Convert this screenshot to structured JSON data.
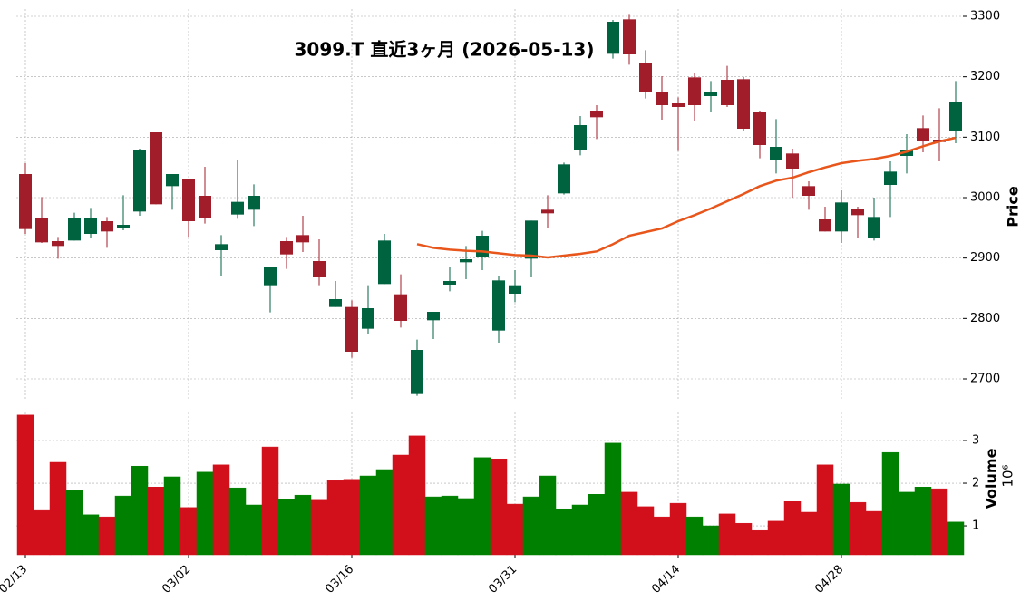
{
  "chart_data": {
    "type": "candlestick",
    "title": "3099.T  直近3ヶ月  (2026-05-13)",
    "ylabel": "Price",
    "volume_label": "Volume",
    "volume_exponent": "10⁶",
    "categories": [
      "02/13",
      null,
      null,
      null,
      null,
      null,
      null,
      null,
      null,
      null,
      "03/02",
      null,
      null,
      null,
      null,
      null,
      null,
      null,
      null,
      null,
      "03/16",
      null,
      null,
      null,
      null,
      null,
      null,
      null,
      null,
      null,
      "03/31",
      null,
      null,
      null,
      null,
      null,
      null,
      null,
      null,
      null,
      "04/14",
      null,
      null,
      null,
      null,
      null,
      null,
      null,
      null,
      null,
      "04/28",
      null,
      null,
      null,
      null,
      null,
      null,
      null
    ],
    "open": [
      3039,
      2967,
      2928,
      2929,
      2940,
      2961,
      2949,
      2977,
      3108,
      3019,
      3030,
      3003,
      2913,
      2972,
      2980,
      2855,
      2928,
      2938,
      2895,
      2819,
      2819,
      2783,
      2857,
      2840,
      2675,
      2797,
      2856,
      2893,
      2901,
      2780,
      2841,
      2899,
      2980,
      3007,
      3079,
      3144,
      3238,
      3295,
      3223,
      3175,
      3156,
      3199,
      3168,
      3195,
      3196,
      3141,
      3062,
      3073,
      3019,
      2964,
      2944,
      2982,
      2934,
      3021,
      3069,
      3115,
      3096,
      3111
    ],
    "high": [
      3057,
      3001,
      2935,
      2975,
      2983,
      2968,
      3004,
      3081,
      3108,
      3039,
      3030,
      3051,
      2938,
      3063,
      3022,
      2885,
      2935,
      2970,
      2931,
      2862,
      2830,
      2855,
      2940,
      2873,
      2765,
      2811,
      2885,
      2920,
      2945,
      2870,
      2880,
      2962,
      3004,
      3058,
      3135,
      3153,
      3294,
      3304,
      3244,
      3201,
      3166,
      3207,
      3193,
      3218,
      3200,
      3144,
      3130,
      3081,
      3027,
      2985,
      3012,
      2985,
      3000,
      3060,
      3105,
      3136,
      3148,
      3193
    ],
    "low": [
      2940,
      2925,
      2899,
      2929,
      2934,
      2917,
      2946,
      2970,
      2989,
      2980,
      2935,
      2957,
      2870,
      2965,
      2953,
      2810,
      2882,
      2910,
      2855,
      2819,
      2735,
      2775,
      2857,
      2785,
      2672,
      2766,
      2845,
      2865,
      2880,
      2760,
      2827,
      2868,
      2949,
      3005,
      3070,
      3097,
      3230,
      3220,
      3164,
      3129,
      3077,
      3126,
      3142,
      3150,
      3110,
      3065,
      3040,
      3000,
      2980,
      2944,
      2925,
      2934,
      2929,
      2968,
      3040,
      3075,
      3060,
      3090
    ],
    "close": [
      2948,
      2926,
      2920,
      2966,
      2966,
      2944,
      2955,
      3078,
      2989,
      3039,
      2961,
      2966,
      2923,
      2993,
      3003,
      2885,
      2906,
      2926,
      2868,
      2832,
      2745,
      2817,
      2929,
      2796,
      2748,
      2811,
      2862,
      2898,
      2937,
      2863,
      2855,
      2962,
      2974,
      3055,
      3120,
      3133,
      3291,
      3237,
      3174,
      3153,
      3150,
      3153,
      3175,
      3153,
      3114,
      3087,
      3084,
      3048,
      3003,
      2944,
      2992,
      2971,
      2968,
      3043,
      3078,
      3094,
      3092,
      3159
    ],
    "volume": [
      3.6,
      1.36,
      2.49,
      1.83,
      1.26,
      1.21,
      1.7,
      2.4,
      1.91,
      2.15,
      1.43,
      2.26,
      2.43,
      1.89,
      1.49,
      2.85,
      1.62,
      1.72,
      1.6,
      2.06,
      2.09,
      2.17,
      2.32,
      2.66,
      3.11,
      1.68,
      1.7,
      1.64,
      2.6,
      2.57,
      1.51,
      1.68,
      2.17,
      1.4,
      1.49,
      1.74,
      2.94,
      1.79,
      1.45,
      1.21,
      1.53,
      1.21,
      1.0,
      1.28,
      1.06,
      0.89,
      1.11,
      1.57,
      1.32,
      2.43,
      1.98,
      1.55,
      1.34,
      2.72,
      1.79,
      1.91,
      1.87,
      1.09
    ],
    "moving_average": {
      "color": "#e8561c",
      "values": [
        null,
        null,
        null,
        null,
        null,
        null,
        null,
        null,
        null,
        null,
        null,
        null,
        null,
        null,
        null,
        null,
        null,
        null,
        null,
        null,
        null,
        null,
        null,
        null,
        2923,
        2917,
        2914,
        2912,
        2911,
        2908,
        2905,
        2904,
        2901,
        2904,
        2907,
        2911,
        2923,
        2937,
        2943,
        2949,
        2961,
        2971,
        2982,
        2994,
        3006,
        3019,
        3028,
        3033,
        3042,
        3050,
        3057,
        3061,
        3064,
        3069,
        3076,
        3085,
        3093,
        3099
      ]
    },
    "up_color": "#006340",
    "down_color": "#a11d2a",
    "volume_up_color": "#008000",
    "volume_down_color": "#d2101c",
    "ylim": [
      2667,
      3312
    ],
    "yticks": [
      2700,
      2800,
      2900,
      3000,
      3100,
      3200,
      3300
    ],
    "volume_ylim": [
      0.32,
      3.66
    ],
    "volume_yticks": [
      1,
      2,
      3
    ],
    "grid": true
  }
}
